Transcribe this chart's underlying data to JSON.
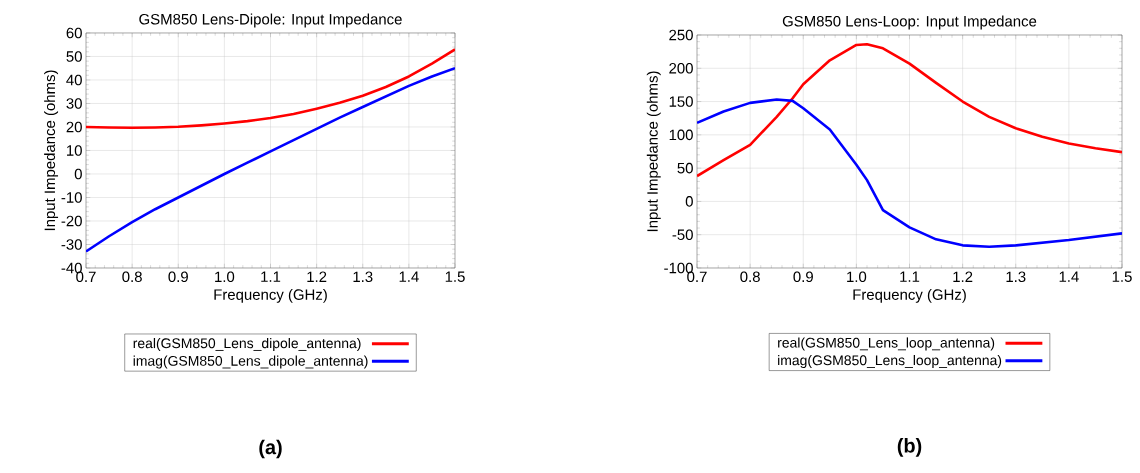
{
  "chart_data": [
    {
      "type": "line",
      "title": "GSM850 Lens-Dipole: Input Impedance",
      "xlabel": "Frequency (GHz)",
      "ylabel": "Input Impedance (ohms)",
      "x": [
        0.7,
        0.75,
        0.8,
        0.85,
        0.9,
        0.95,
        1.0,
        1.05,
        1.1,
        1.15,
        1.2,
        1.25,
        1.3,
        1.35,
        1.4,
        1.45,
        1.5
      ],
      "series": [
        {
          "name": "real(GSM850_Lens_dipole_antenna)",
          "color": "#ff0000",
          "values": [
            20,
            19.8,
            19.7,
            19.8,
            20.1,
            20.7,
            21.5,
            22.5,
            23.8,
            25.5,
            27.8,
            30.3,
            33.3,
            37,
            41.5,
            47,
            53
          ]
        },
        {
          "name": "imag(GSM850_Lens_dipole_antenna)",
          "color": "#0000ff",
          "values": [
            -33,
            -26.5,
            -20.5,
            -15,
            -10,
            -5,
            0,
            4.8,
            9.6,
            14.4,
            19.2,
            24,
            28.5,
            33,
            37.5,
            41.5,
            45
          ]
        }
      ],
      "xlim": [
        0.7,
        1.5
      ],
      "ylim": [
        -40,
        60
      ],
      "xticks": [
        0.7,
        0.8,
        0.9,
        {
          "value": 1,
          "label": "1.0"
        },
        1.1,
        1.2,
        1.3,
        1.4,
        1.5
      ],
      "yticks": [
        -40,
        -30,
        -20,
        -10,
        0,
        10,
        20,
        30,
        40,
        50,
        60
      ],
      "grid": true,
      "legend": "bottom",
      "line_style": "solid",
      "marker": "none",
      "annotations": [
        "(a)"
      ]
    },
    {
      "type": "line",
      "title": "GSM850 Lens-Loop: Input Impedance",
      "xlabel": "Frequency (GHz)",
      "ylabel": "Input Impedance (ohms)",
      "x": [
        0.7,
        0.75,
        0.8,
        0.85,
        0.88,
        0.9,
        0.95,
        1.0,
        1.02,
        1.05,
        1.1,
        1.15,
        1.2,
        1.25,
        1.3,
        1.35,
        1.4,
        1.45,
        1.5
      ],
      "series": [
        {
          "name": "real(GSM850_Lens_loop_antenna)",
          "color": "#ff0000",
          "values": [
            38,
            62,
            85,
            127,
            155,
            176,
            212,
            235,
            236,
            230,
            207,
            178,
            150,
            127,
            110,
            97,
            87,
            80,
            74
          ]
        },
        {
          "name": "imag(GSM850_Lens_loop_antenna)",
          "color": "#0000ff",
          "values": [
            118,
            135,
            148,
            153,
            151,
            140,
            108,
            55,
            32,
            -13,
            -39,
            -57,
            -66,
            -68,
            -66,
            -62,
            -58,
            -53,
            -48
          ]
        }
      ],
      "xlim": [
        0.7,
        1.5
      ],
      "ylim": [
        -100,
        250
      ],
      "xticks": [
        0.7,
        0.8,
        0.9,
        {
          "value": 1,
          "label": "1.0"
        },
        1.1,
        1.2,
        1.3,
        1.4,
        1.5
      ],
      "yticks": [
        -100,
        -50,
        0,
        50,
        100,
        150,
        200,
        250
      ],
      "grid": true,
      "legend": "bottom",
      "line_style": "solid",
      "marker": "none",
      "annotations": [
        "(b)"
      ]
    }
  ]
}
